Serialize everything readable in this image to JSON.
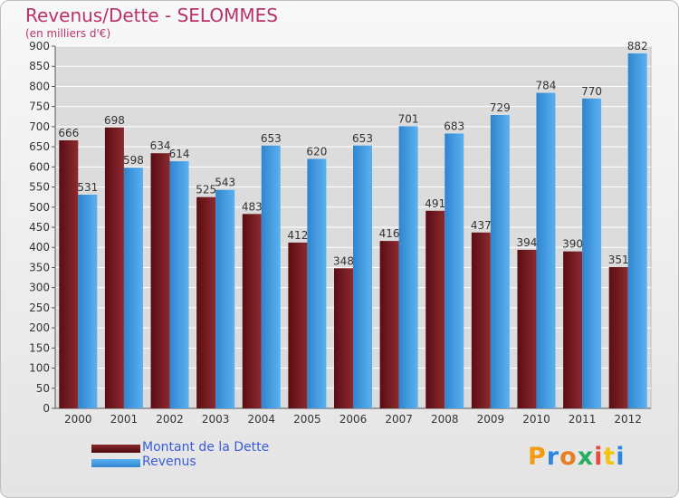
{
  "chart_data": {
    "type": "bar",
    "title": "Revenus/Dette - SELOMMES",
    "subtitle": "(en milliers d'€)",
    "categories": [
      "2000",
      "2001",
      "2002",
      "2003",
      "2004",
      "2005",
      "2006",
      "2007",
      "2008",
      "2009",
      "2010",
      "2011",
      "2012"
    ],
    "series": [
      {
        "name": "Montant de la Dette",
        "values": [
          666,
          698,
          634,
          525,
          483,
          412,
          348,
          416,
          491,
          437,
          394,
          390,
          351
        ],
        "color": "#7a1f24"
      },
      {
        "name": "Revenus",
        "values": [
          531,
          598,
          614,
          543,
          653,
          620,
          653,
          701,
          683,
          729,
          784,
          770,
          882
        ],
        "color": "#4aa3e6"
      }
    ],
    "ylim": [
      0,
      900
    ],
    "ytick_step": 50,
    "yticks": [
      "0",
      "50",
      "100",
      "150",
      "200",
      "250",
      "300",
      "350",
      "400",
      "450",
      "500",
      "550",
      "600",
      "650",
      "700",
      "750",
      "800",
      "850",
      "900"
    ],
    "grid": true,
    "legend_position": "bottom-left"
  },
  "logo": {
    "letters": [
      "P",
      "r",
      "o",
      "x",
      "i",
      "t",
      "i"
    ],
    "colors": [
      "#f39c12",
      "#2e86de",
      "#e67e22",
      "#27ae60",
      "#e74c3c",
      "#f1c40f",
      "#2e86de"
    ]
  }
}
